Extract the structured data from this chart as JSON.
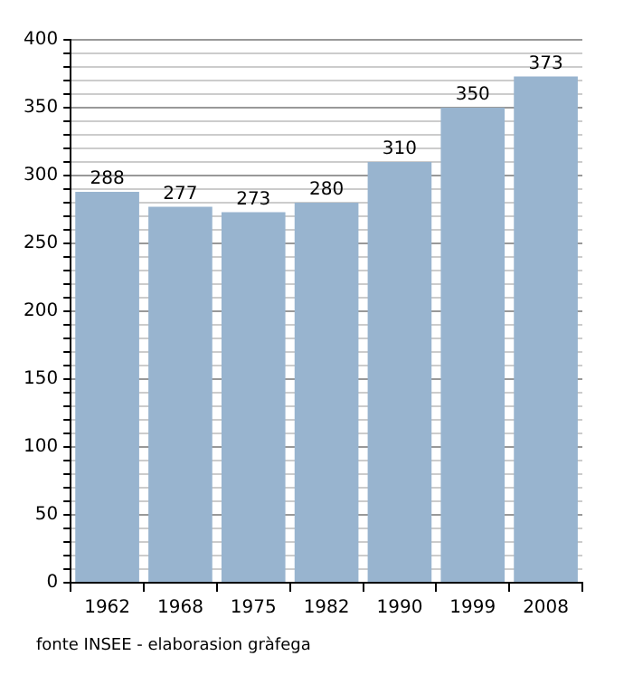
{
  "chart_data": {
    "type": "bar",
    "categories": [
      "1962",
      "1968",
      "1975",
      "1982",
      "1990",
      "1999",
      "2008"
    ],
    "values": [
      288,
      277,
      273,
      280,
      310,
      350,
      373
    ],
    "color": "#98b4cf",
    "ylim": [
      0,
      400
    ],
    "yticks": [
      0,
      {
        "value": 10,
        "label": null
      },
      {
        "value": 20,
        "label": null
      },
      {
        "value": 30,
        "label": null
      },
      {
        "value": 40,
        "label": null
      },
      50,
      {
        "value": 60,
        "label": null
      },
      {
        "value": 70,
        "label": null
      },
      {
        "value": 80,
        "label": null
      },
      {
        "value": 90,
        "label": null
      },
      100,
      {
        "value": 110,
        "label": null
      },
      {
        "value": 120,
        "label": null
      },
      {
        "value": 130,
        "label": null
      },
      {
        "value": 140,
        "label": null
      },
      150,
      {
        "value": 160,
        "label": null
      },
      {
        "value": 170,
        "label": null
      },
      {
        "value": 180,
        "label": null
      },
      {
        "value": 190,
        "label": null
      },
      200,
      {
        "value": 210,
        "label": null
      },
      {
        "value": 220,
        "label": null
      },
      {
        "value": 230,
        "label": null
      },
      {
        "value": 240,
        "label": null
      },
      250,
      {
        "value": 260,
        "label": null
      },
      {
        "value": 270,
        "label": null
      },
      {
        "value": 280,
        "label": null
      },
      {
        "value": 290,
        "label": null
      },
      300,
      {
        "value": 310,
        "label": null
      },
      {
        "value": 320,
        "label": null
      },
      {
        "value": 330,
        "label": null
      },
      {
        "value": 340,
        "label": null
      },
      350,
      {
        "value": 360,
        "label": null
      },
      {
        "value": 370,
        "label": null
      },
      {
        "value": 380,
        "label": null
      },
      {
        "value": 390,
        "label": null
      },
      400
    ],
    "grid": true,
    "data_labels": true,
    "annotations": [
      "fonte INSEE - elaborasion gràfega"
    ]
  }
}
